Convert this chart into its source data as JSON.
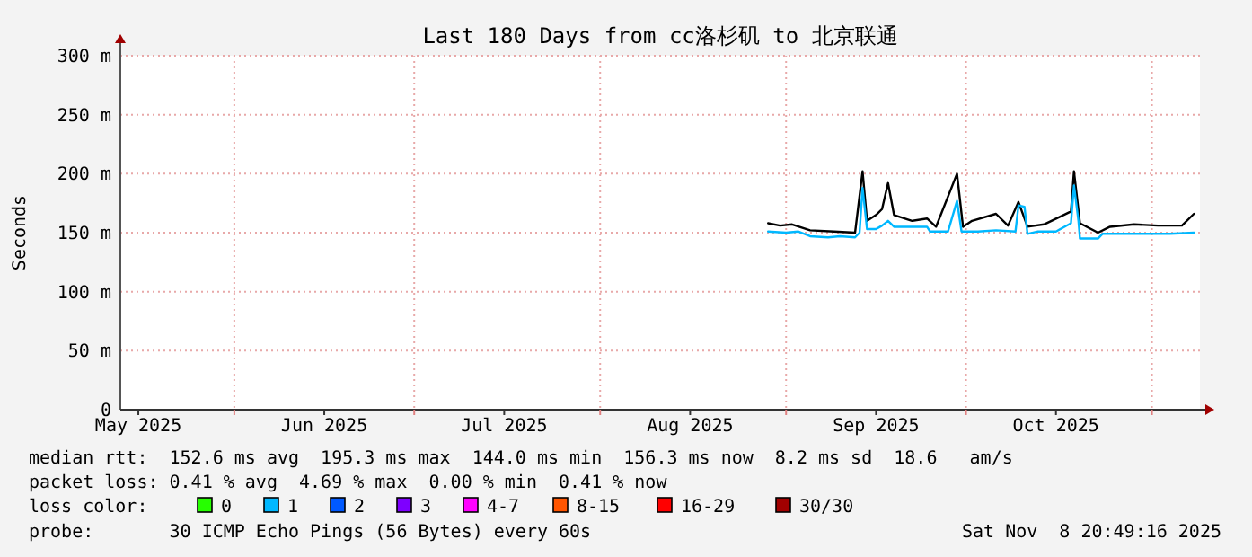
{
  "chart_data": {
    "type": "line",
    "title": "Last 180 Days from cc洛杉矶 to 北京联通",
    "ylabel": "Seconds",
    "xlim": [
      "2025-05-13",
      "2025-11-09"
    ],
    "xticks": [
      {
        "value": "2025-05-16",
        "label": "May 2025"
      },
      {
        "value": "2025-06-01",
        "label": null
      },
      {
        "value": "2025-06-16",
        "label": "Jun 2025"
      },
      {
        "value": "2025-07-01",
        "label": null
      },
      {
        "value": "2025-07-16",
        "label": "Jul 2025"
      },
      {
        "value": "2025-08-01",
        "label": null
      },
      {
        "value": "2025-08-16",
        "label": "Aug 2025"
      },
      {
        "value": "2025-09-01",
        "label": null
      },
      {
        "value": "2025-09-16",
        "label": "Sep 2025"
      },
      {
        "value": "2025-10-01",
        "label": null
      },
      {
        "value": "2025-10-16",
        "label": "Oct 2025"
      },
      {
        "value": "2025-11-01",
        "label": null
      }
    ],
    "ylim": [
      0,
      300
    ],
    "yticks": [
      0,
      {
        "value": 50,
        "label": "50 m"
      },
      {
        "value": 100,
        "label": "100 m"
      },
      {
        "value": 150,
        "label": "150 m"
      },
      {
        "value": 200,
        "label": "200 m"
      },
      {
        "value": 250,
        "label": "250 m"
      },
      {
        "value": 300,
        "label": "300 m"
      }
    ],
    "grid": true,
    "legend": "bottom",
    "line_style": "solid",
    "series": [
      {
        "color": "#000000",
        "x": [
          "2025-08-29",
          "2025-08-31",
          "2025-09-02",
          "2025-09-05",
          "2025-09-09",
          "2025-09-12T12:00",
          "2025-09-13T18:00",
          "2025-09-14T12:00",
          "2025-09-16",
          "2025-09-17",
          "2025-09-18",
          "2025-09-19",
          "2025-09-22",
          "2025-09-24T12:00",
          "2025-09-26",
          "2025-09-29T12:00",
          "2025-09-30T12:00",
          "2025-10-02",
          "2025-10-06",
          "2025-10-08",
          "2025-10-09T18:00",
          "2025-10-11T06:00",
          "2025-10-14",
          "2025-10-18T12:00",
          "2025-10-19",
          "2025-10-20",
          "2025-10-23",
          "2025-10-25",
          "2025-10-29",
          "2025-11-02",
          "2025-11-06",
          "2025-11-08"
        ],
        "values": [
          158,
          156,
          157,
          152,
          151,
          150,
          202,
          160,
          165,
          170,
          192,
          165,
          160,
          162,
          155,
          200,
          155,
          160,
          166,
          156,
          176,
          155,
          157,
          168,
          202,
          158,
          150,
          155,
          157,
          156,
          156,
          166
        ]
      },
      {
        "name": "0",
        "color": "#26ff00"
      },
      {
        "name": "1",
        "color": "#00b8ff",
        "x": [
          "2025-08-29",
          "2025-09-01",
          "2025-09-03",
          "2025-09-05",
          "2025-09-08",
          "2025-09-10",
          "2025-09-12T12:00",
          "2025-09-13T06:00",
          "2025-09-13T18:00",
          "2025-09-14T12:00",
          "2025-09-16",
          "2025-09-17",
          "2025-09-18",
          "2025-09-19",
          "2025-09-22",
          "2025-09-24T12:00",
          "2025-09-25",
          "2025-09-28",
          "2025-09-29T12:00",
          "2025-09-30T06:00",
          "2025-10-03",
          "2025-10-06",
          "2025-10-09T06:00",
          "2025-10-09T18:00",
          "2025-10-10T18:00",
          "2025-10-11T06:00",
          "2025-10-13",
          "2025-10-16",
          "2025-10-18T12:00",
          "2025-10-19",
          "2025-10-19T18:00",
          "2025-10-20",
          "2025-10-23",
          "2025-10-23T18:00",
          "2025-10-27",
          "2025-10-31",
          "2025-11-04",
          "2025-11-08"
        ],
        "values": [
          151,
          150,
          151,
          147,
          146,
          147,
          146,
          150,
          188,
          153,
          153,
          156,
          160,
          155,
          155,
          155,
          151,
          151,
          177,
          151,
          151,
          152,
          151,
          173,
          172,
          149,
          151,
          151,
          158,
          190,
          160,
          145,
          145,
          149,
          149,
          149,
          149,
          150
        ]
      },
      {
        "name": "2",
        "color": "#0059ff"
      },
      {
        "name": "3",
        "color": "#7e00ff"
      },
      {
        "name": "4-7",
        "color": "#ff00ff"
      },
      {
        "name": "8-15",
        "color": "#ff5500"
      },
      {
        "name": "16-29",
        "color": "#ff0000"
      },
      {
        "name": "30/30",
        "color": "#a10000"
      }
    ],
    "legend_title": "loss color:",
    "annotations": [
      "median rtt:  152.6 ms avg  195.3 ms max  144.0 ms min  156.3 ms now  8.2 ms sd  18.6   am/s",
      "packet loss: 0.41 % avg  4.69 % max  0.00 % min  0.41 % now",
      "probe:       30 ICMP Echo Pings (56 Bytes) every 60s",
      "Sat Nov  8 20:49:16 2025"
    ]
  }
}
